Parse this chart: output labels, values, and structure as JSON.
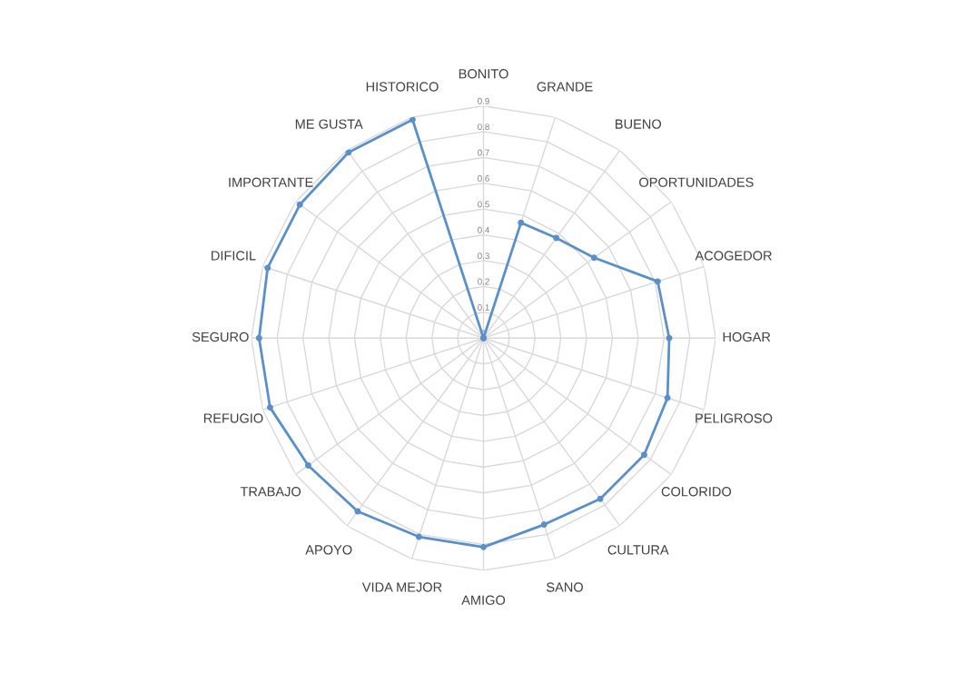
{
  "chart_data": {
    "type": "radar",
    "categories": [
      "BONITO",
      "GRANDE",
      "BUENO",
      "OPORTUNIDADES",
      "ACOGEDOR",
      "HOGAR",
      "PELIGROSO",
      "COLORIDO",
      "CULTURA",
      "SANO",
      "AMIGO",
      "VIDA MEJOR",
      "APOYO",
      "TRABAJO",
      "REFUGIO",
      "SEGURO",
      "DIFICIL",
      "IMPORTANTE",
      "ME GUSTA",
      "HISTORICO"
    ],
    "series": [
      {
        "color": "#5b8fc7",
        "values": [
          0,
          0.47,
          0.48,
          0.53,
          0.71,
          0.72,
          0.75,
          0.77,
          0.77,
          0.76,
          0.81,
          0.81,
          0.83,
          0.84,
          0.87,
          0.87,
          0.88,
          0.88,
          0.89,
          0.89
        ]
      }
    ],
    "ylim": [
      0,
      0.9
    ],
    "yticks": [
      0,
      0.1,
      0.2,
      0.3,
      0.4,
      0.5,
      0.6,
      0.7,
      0.8,
      0.9
    ],
    "grid": true,
    "marker": "circle",
    "line_style": "solid"
  }
}
